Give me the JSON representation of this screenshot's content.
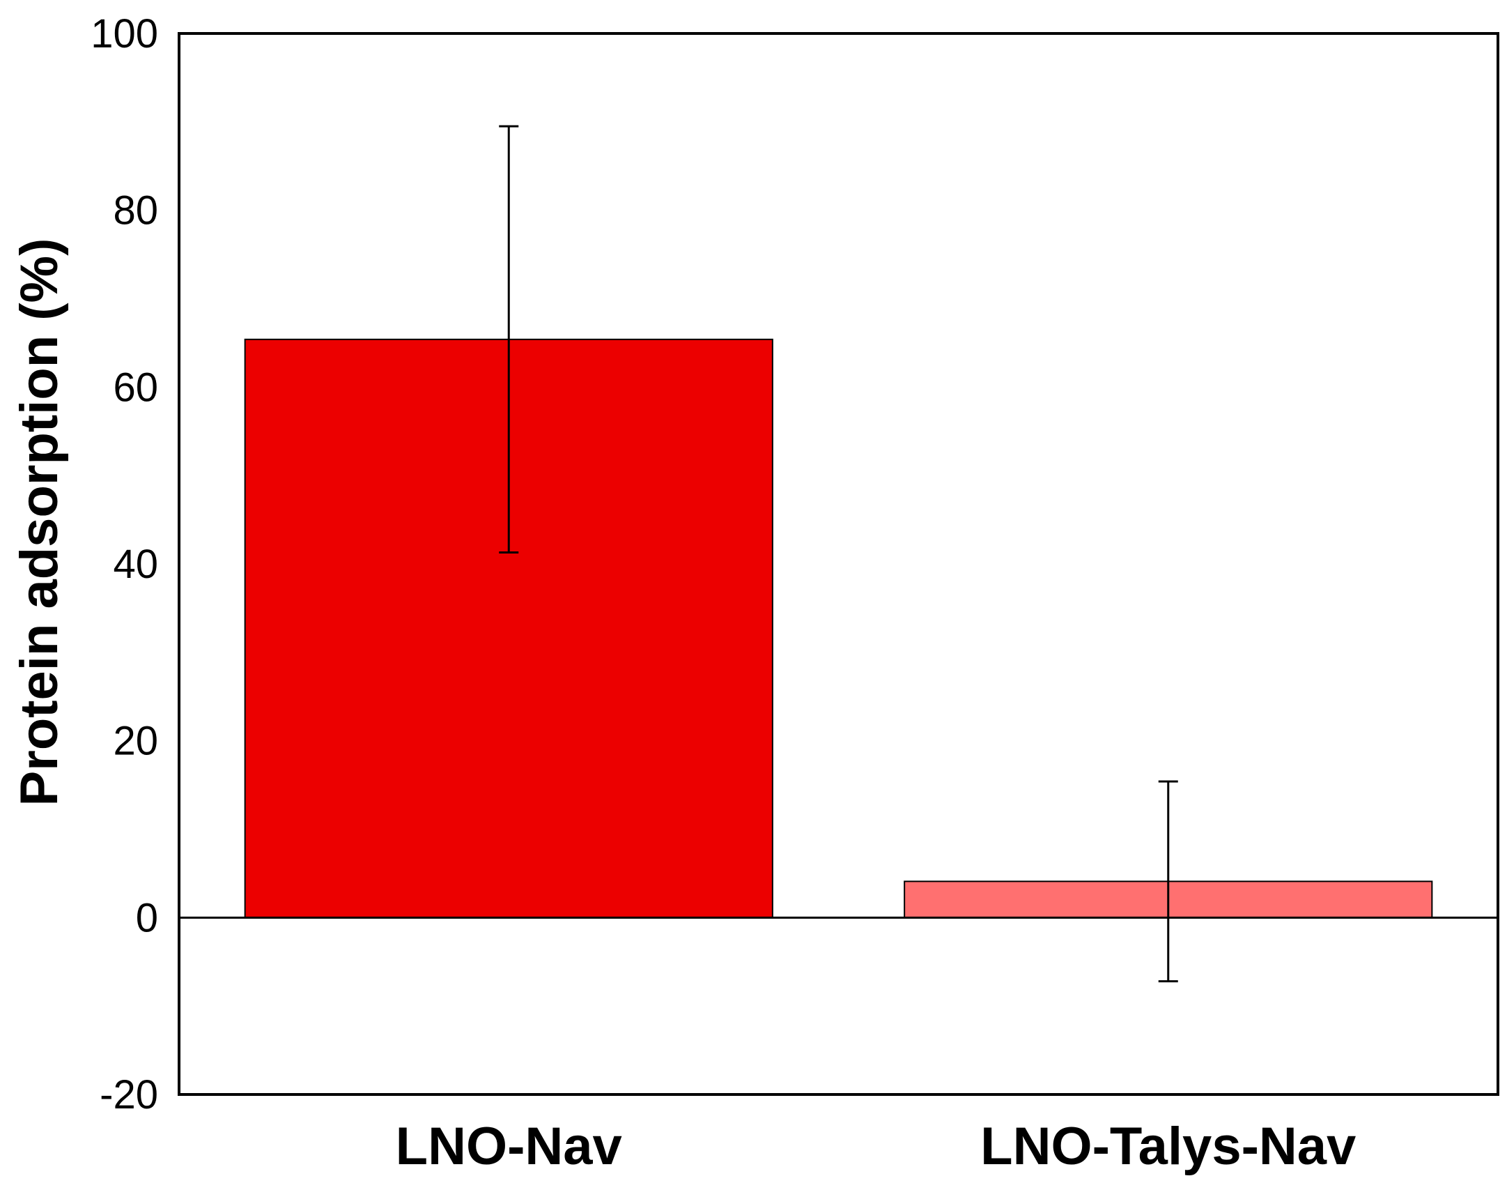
{
  "chart_data": {
    "type": "bar",
    "title": "",
    "xlabel": "",
    "ylabel": "Protein adsorption (%)",
    "ylim": [
      -20,
      100
    ],
    "yticks": [
      100,
      80,
      60,
      40,
      20,
      0,
      -20
    ],
    "grid": false,
    "legend": "none",
    "categories": [
      "LNO-Nav",
      "LNO-Talys-Nav"
    ],
    "series": [
      {
        "values": [
          65.4,
          4.1
        ],
        "errors": [
          24.1,
          11.3
        ],
        "colors": [
          "#ec0000",
          "#ff7070"
        ]
      }
    ]
  }
}
